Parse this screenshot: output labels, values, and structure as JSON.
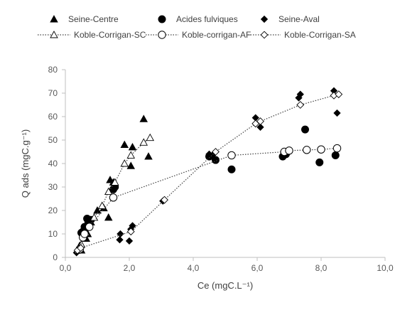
{
  "chart_data": {
    "type": "scatter",
    "xlabel": "Ce (mgC.L⁻¹)",
    "ylabel": "Q ads (mgC.g⁻¹)",
    "xlim": [
      0,
      10
    ],
    "ylim": [
      0,
      80
    ],
    "x_ticks": [
      "0,0",
      "2,0",
      "4,0",
      "6,0",
      "8,0",
      "10,0"
    ],
    "y_ticks": [
      "0",
      "10",
      "20",
      "30",
      "40",
      "50",
      "60",
      "70",
      "80"
    ],
    "grid": false,
    "legend_position": "top",
    "series": [
      {
        "name": "Seine-Centre",
        "marker": "triangle-filled",
        "line": "none",
        "points": [
          [
            0.38,
            3
          ],
          [
            0.42,
            4
          ],
          [
            0.45,
            5
          ],
          [
            0.5,
            3
          ],
          [
            0.65,
            8
          ],
          [
            0.7,
            10
          ],
          [
            0.8,
            15
          ],
          [
            1.0,
            20
          ],
          [
            1.2,
            21
          ],
          [
            1.35,
            17
          ],
          [
            1.4,
            33
          ],
          [
            1.5,
            32
          ],
          [
            1.85,
            48
          ],
          [
            2.05,
            39
          ],
          [
            2.1,
            47
          ],
          [
            2.45,
            59
          ],
          [
            2.6,
            43
          ]
        ]
      },
      {
        "name": "Acides fulviques",
        "marker": "circle-filled",
        "line": "none",
        "points": [
          [
            0.5,
            10.5
          ],
          [
            0.55,
            11
          ],
          [
            0.6,
            13
          ],
          [
            0.68,
            16.5
          ],
          [
            0.72,
            15
          ],
          [
            0.8,
            16
          ],
          [
            1.5,
            29
          ],
          [
            1.55,
            30
          ],
          [
            4.5,
            43
          ],
          [
            4.7,
            41.5
          ],
          [
            5.2,
            37.5
          ],
          [
            6.8,
            43
          ],
          [
            6.9,
            44
          ],
          [
            7.5,
            54.5
          ],
          [
            7.95,
            40.5
          ],
          [
            8.45,
            43.5
          ]
        ]
      },
      {
        "name": "Seine-Aval",
        "marker": "diamond-filled",
        "line": "none",
        "points": [
          [
            0.35,
            2
          ],
          [
            0.45,
            3
          ],
          [
            1.7,
            7.5
          ],
          [
            1.72,
            10
          ],
          [
            2.0,
            7
          ],
          [
            2.05,
            12
          ],
          [
            2.1,
            13.5
          ],
          [
            3.05,
            24
          ],
          [
            4.5,
            44
          ],
          [
            4.6,
            43.5
          ],
          [
            5.95,
            59.5
          ],
          [
            6.1,
            55.5
          ],
          [
            7.3,
            68
          ],
          [
            7.35,
            69.5
          ],
          [
            8.4,
            71
          ],
          [
            8.5,
            61.5
          ]
        ]
      },
      {
        "name": "Koble-Corrigan-SC",
        "marker": "triangle-open",
        "line": "dotted",
        "points": [
          [
            0.4,
            3
          ],
          [
            0.5,
            5.5
          ],
          [
            0.65,
            10.5
          ],
          [
            0.9,
            17
          ],
          [
            1.15,
            22
          ],
          [
            1.35,
            28
          ],
          [
            1.55,
            32
          ],
          [
            1.85,
            40
          ],
          [
            2.05,
            43.5
          ],
          [
            2.45,
            49
          ],
          [
            2.65,
            51
          ]
        ]
      },
      {
        "name": "Koble-corrigan-AF",
        "marker": "circle-open",
        "line": "dotted",
        "points": [
          [
            0.45,
            3.5
          ],
          [
            0.55,
            8.5
          ],
          [
            0.6,
            10
          ],
          [
            0.75,
            13
          ],
          [
            1.5,
            25.5
          ],
          [
            5.2,
            43.5
          ],
          [
            6.85,
            45
          ],
          [
            7.0,
            45.5
          ],
          [
            7.55,
            45.8
          ],
          [
            8.0,
            46
          ],
          [
            8.5,
            46.5
          ]
        ]
      },
      {
        "name": "Koble-Corrigan-SA",
        "marker": "diamond-open",
        "line": "dotted",
        "points": [
          [
            0.38,
            3
          ],
          [
            0.48,
            4
          ],
          [
            2.05,
            11
          ],
          [
            3.1,
            24.5
          ],
          [
            4.7,
            45
          ],
          [
            5.95,
            57
          ],
          [
            6.1,
            58
          ],
          [
            7.35,
            65
          ],
          [
            8.4,
            69
          ],
          [
            8.55,
            69.5
          ]
        ]
      }
    ]
  }
}
